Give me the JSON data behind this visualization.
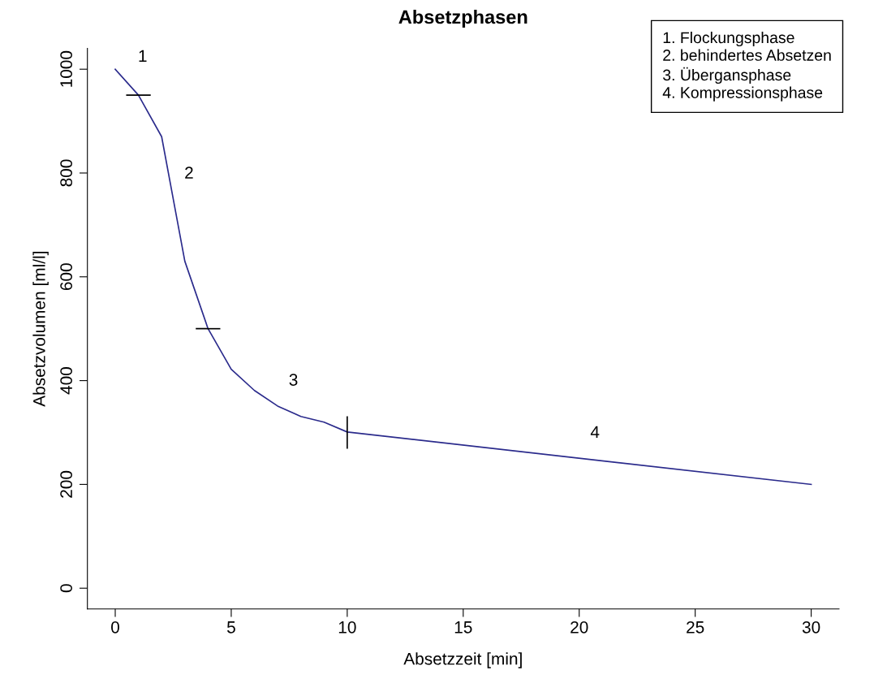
{
  "chart_data": {
    "type": "line",
    "title": "Absetzphasen",
    "xlabel": "Absetzzeit [min]",
    "ylabel": "Absetzvolumen [ml/l]",
    "x": [
      0,
      1,
      2,
      3,
      4,
      5,
      6,
      7,
      8,
      9,
      10,
      30
    ],
    "series": [
      {
        "color": "#2b2b8c",
        "values": [
          1000,
          950,
          870,
          630,
          500,
          422,
          381,
          351,
          331,
          320,
          301,
          200
        ]
      },
      {
        "color": "#000000",
        "x": [
          0.5,
          1.5
        ],
        "values": [
          950,
          950
        ]
      },
      {
        "color": "#000000",
        "x": [
          3.5,
          4.5
        ],
        "values": [
          500,
          500
        ]
      },
      {
        "color": "#000000",
        "x": [
          10,
          10
        ],
        "values": [
          270,
          330
        ]
      }
    ],
    "xlim": [
      -1.2,
      31.2
    ],
    "ylim": [
      -40,
      1040
    ],
    "xticks": [
      0,
      5,
      10,
      15,
      20,
      25,
      30
    ],
    "yticks": [
      0,
      200,
      400,
      600,
      800,
      1000
    ],
    "grid": false,
    "marker": "none",
    "line_style": "solid",
    "annotations": [
      "1",
      "2",
      "3",
      "4",
      "1. Flockungsphase",
      "2. behindertes Absetzen",
      "3. Übergansphase",
      "4. Kompressionsphase"
    ]
  }
}
